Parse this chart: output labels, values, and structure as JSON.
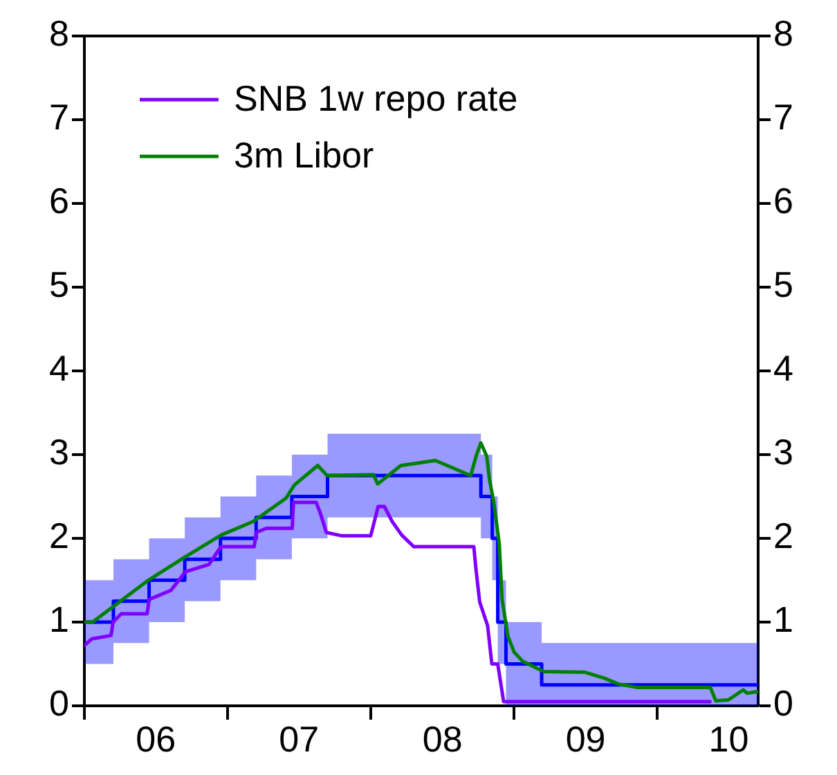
{
  "chart_data": {
    "type": "line",
    "xlim": [
      "2006-01-01",
      "2010-09-15"
    ],
    "xticks": [
      {
        "value": "2006-01-01",
        "label": null
      },
      {
        "value": "2006-07-02",
        "label": "06"
      },
      {
        "value": "2007-01-01",
        "label": null
      },
      {
        "value": "2007-07-02",
        "label": "07"
      },
      {
        "value": "2008-01-01",
        "label": null
      },
      {
        "value": "2008-07-02",
        "label": "08"
      },
      {
        "value": "2009-01-01",
        "label": null
      },
      {
        "value": "2009-07-02",
        "label": "09"
      },
      {
        "value": "2010-01-01",
        "label": null
      },
      {
        "value": "2010-07-02",
        "label": "10"
      }
    ],
    "ylim": [
      0,
      8
    ],
    "yticks": [
      0,
      1,
      2,
      3,
      4,
      5,
      6,
      7,
      8
    ],
    "y2lim": [
      0,
      8
    ],
    "y2ticks": [
      0,
      1,
      2,
      3,
      4,
      5,
      6,
      7,
      8
    ],
    "grid": false,
    "legend": "top left",
    "marker": "none",
    "line_style": "solid",
    "series": [
      {
        "type": "step",
        "color": "#0000ff",
        "x": [
          "2006-01-01",
          "2006-03-16",
          "2006-06-15",
          "2006-09-14",
          "2006-12-14",
          "2007-03-15",
          "2007-06-14",
          "2007-09-13",
          "2008-10-08",
          "2008-11-06",
          "2008-11-20",
          "2008-12-11",
          "2009-03-12",
          "2010-09-15"
        ],
        "values": [
          1.0,
          1.25,
          1.5,
          1.75,
          2.0,
          2.25,
          2.5,
          2.75,
          2.5,
          2.0,
          1.0,
          0.5,
          0.25,
          0.25
        ],
        "lower": [
          0.5,
          0.75,
          1.0,
          1.25,
          1.5,
          1.75,
          2.0,
          2.25,
          2.0,
          1.5,
          0.5,
          0,
          0,
          0
        ],
        "upper": [
          1.5,
          1.75,
          2.0,
          2.25,
          2.5,
          2.75,
          3.0,
          3.25,
          3.0,
          2.5,
          1.5,
          1.0,
          0.75,
          0.75
        ]
      },
      {
        "name": "SNB 1w repo rate",
        "color": "#8000ff",
        "x": [
          "2006-01-01",
          "2006-01-20",
          "2006-03-10",
          "2006-03-15",
          "2006-04-05",
          "2006-06-10",
          "2006-06-15",
          "2006-08-10",
          "2006-09-15",
          "2006-11-15",
          "2006-12-15",
          "2007-03-10",
          "2007-03-15",
          "2007-04-10",
          "2007-06-15",
          "2007-06-18",
          "2007-08-15",
          "2007-08-25",
          "2007-09-10",
          "2007-10-20",
          "2008-01-01",
          "2008-01-20",
          "2008-02-05",
          "2008-02-25",
          "2008-03-20",
          "2008-04-20",
          "2008-09-20",
          "2008-09-25",
          "2008-10-05",
          "2008-10-25",
          "2008-11-05",
          "2008-11-20",
          "2008-12-05",
          "2010-05-15"
        ],
        "values": [
          0.72,
          0.8,
          0.84,
          1.0,
          1.1,
          1.1,
          1.27,
          1.38,
          1.6,
          1.69,
          1.9,
          1.9,
          2.07,
          2.12,
          2.12,
          2.43,
          2.43,
          2.31,
          2.07,
          2.03,
          2.03,
          2.38,
          2.38,
          2.2,
          2.04,
          1.9,
          1.9,
          1.65,
          1.24,
          0.96,
          0.5,
          0.5,
          0.05,
          0.05
        ]
      },
      {
        "name": "3m Libor",
        "color": "#008000",
        "x": [
          "2006-01-01",
          "2006-01-22",
          "2006-06-10",
          "2006-09-12",
          "2006-12-16",
          "2007-03-07",
          "2007-05-30",
          "2007-06-21",
          "2007-08-19",
          "2007-09-12",
          "2008-01-08",
          "2008-01-19",
          "2008-03-18",
          "2008-06-14",
          "2008-09-12",
          "2008-09-27",
          "2008-10-08",
          "2008-10-23",
          "2008-10-30",
          "2008-11-10",
          "2008-11-24",
          "2008-12-01",
          "2008-12-16",
          "2009-01-01",
          "2009-01-23",
          "2009-03-17",
          "2009-07-01",
          "2009-08-19",
          "2009-09-24",
          "2009-11-10",
          "2010-05-16",
          "2010-05-30",
          "2010-07-01",
          "2010-08-08",
          "2010-08-18",
          "2010-09-12"
        ],
        "values": [
          1.0,
          1.0,
          1.49,
          1.77,
          2.04,
          2.2,
          2.48,
          2.64,
          2.87,
          2.75,
          2.76,
          2.65,
          2.87,
          2.93,
          2.75,
          3.0,
          3.14,
          2.98,
          2.7,
          2.43,
          1.93,
          1.27,
          0.83,
          0.64,
          0.53,
          0.41,
          0.4,
          0.33,
          0.26,
          0.22,
          0.22,
          0.06,
          0.07,
          0.19,
          0.15,
          0.17
        ]
      }
    ]
  }
}
